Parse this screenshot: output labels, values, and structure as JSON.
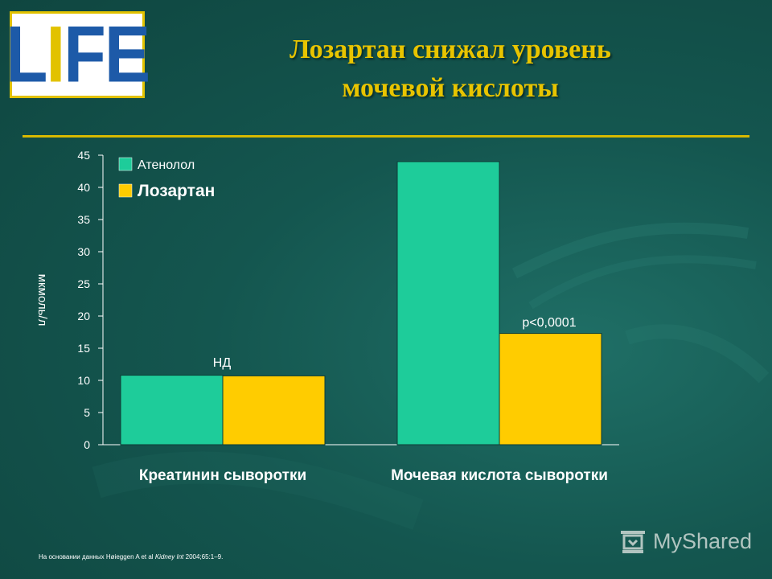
{
  "logo": {
    "text_a": "L",
    "text_b": "I",
    "text_c": "FE"
  },
  "title": {
    "line1": "Лозартан снижал уровень",
    "line2": "мочевой кислоты"
  },
  "colors": {
    "atenolol": "#1ecc9a",
    "losartan": "#ffcc00",
    "axis": "#ffffff",
    "title": "#e8c400"
  },
  "chart_data": {
    "type": "bar",
    "categories": [
      "Креатинин сыворотки",
      "Мочевая кислота сыворотки"
    ],
    "series": [
      {
        "name": "Атенолол",
        "values": [
          10.8,
          44
        ]
      },
      {
        "name": "Лозартан",
        "values": [
          10.7,
          17.3
        ]
      }
    ],
    "ylabel": "мкмоль/л",
    "ylim": [
      0,
      45
    ],
    "yticks": [
      "0",
      "5",
      "10",
      "15",
      "20",
      "25",
      "30",
      "35",
      "40",
      "45"
    ],
    "annotations": [
      "НД",
      "р<0,0001"
    ],
    "legend_position": "top-left",
    "grid": false
  },
  "footnote": {
    "prefix": "На основании данных Høieggen A et al ",
    "journal": "Kidney Int",
    "suffix": " 2004;65:1–9."
  },
  "watermark": {
    "text": "MyShared"
  }
}
